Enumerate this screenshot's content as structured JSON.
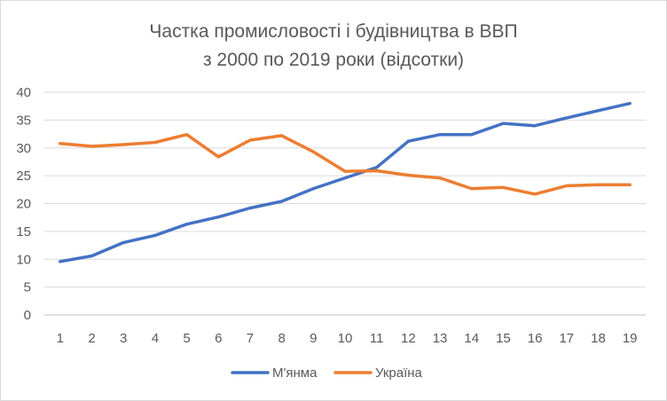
{
  "chart_data": {
    "type": "line",
    "title_lines": [
      "Частка промисловості і будівництва в ВВП",
      "з 2000 по 2019 роки (відсотки)"
    ],
    "categories": [
      "1",
      "2",
      "3",
      "4",
      "5",
      "6",
      "7",
      "8",
      "9",
      "10",
      "11",
      "12",
      "13",
      "14",
      "15",
      "16",
      "17",
      "18",
      "19"
    ],
    "ylim": [
      0,
      40
    ],
    "yticks": [
      0,
      5,
      10,
      15,
      20,
      25,
      30,
      35,
      40
    ],
    "grid": true,
    "legend": "bottom",
    "series": [
      {
        "name": "М'янма",
        "color": "#4472C4",
        "values": [
          9.6,
          10.6,
          13.0,
          14.3,
          16.3,
          17.6,
          19.2,
          20.4,
          22.7,
          24.6,
          26.5,
          31.2,
          32.4,
          32.4,
          34.4,
          34.0,
          35.4,
          36.7,
          38.0
        ]
      },
      {
        "name": "Україна",
        "color": "#ED7D31",
        "values": [
          30.8,
          30.3,
          30.6,
          31.0,
          32.4,
          28.4,
          31.4,
          32.2,
          29.3,
          25.8,
          25.9,
          25.1,
          24.6,
          22.7,
          22.9,
          21.7,
          23.2,
          23.4,
          23.4
        ]
      }
    ]
  }
}
